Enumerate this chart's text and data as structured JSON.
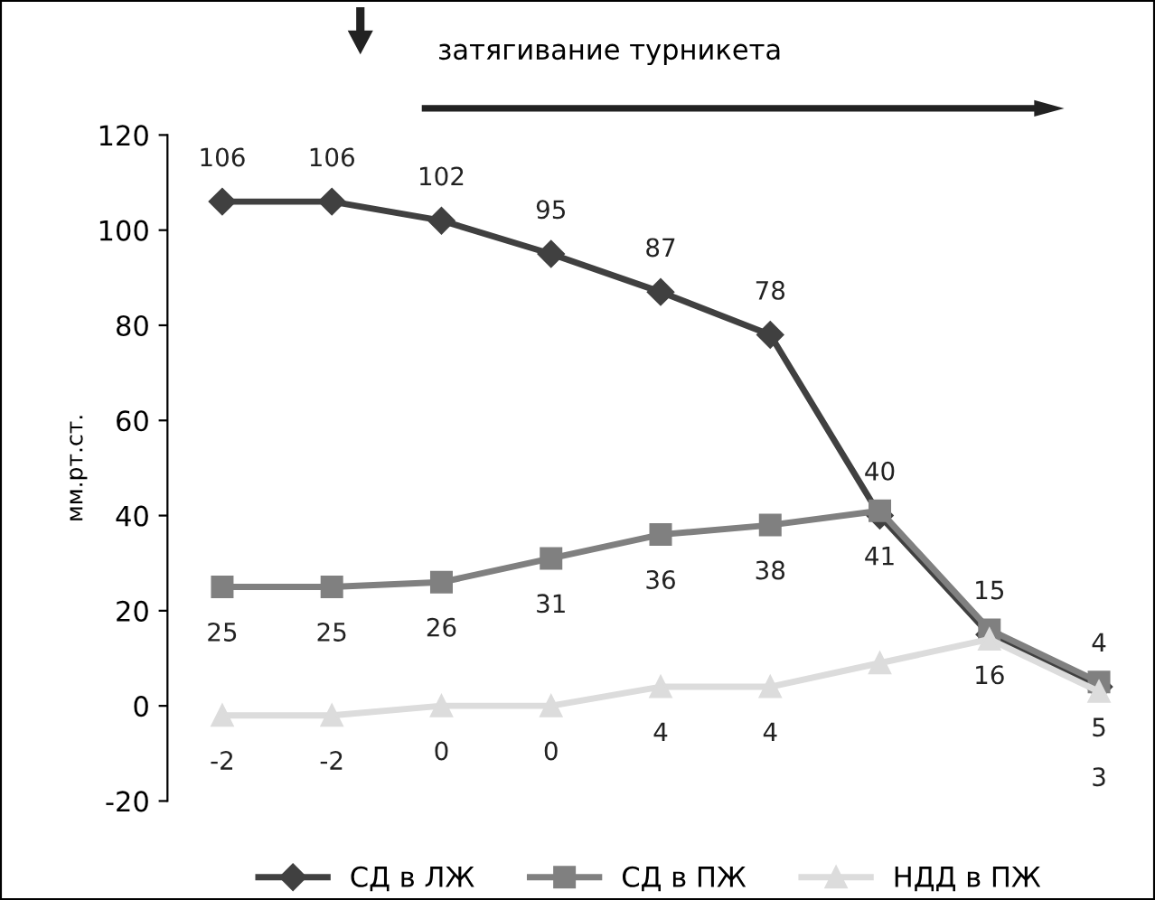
{
  "chart_data": {
    "type": "line",
    "ylabel": "мм.рт.ст.",
    "annotations": [
      "затягивание турникета"
    ],
    "categories": [
      null,
      null,
      null,
      null,
      null,
      null,
      null,
      null,
      null
    ],
    "ylim": [
      -20,
      120
    ],
    "yticks": [
      -20,
      0,
      20,
      40,
      60,
      80,
      100,
      120
    ],
    "grid": false,
    "legend": "bottom",
    "tick_labels": "y",
    "series": [
      {
        "name": "СД в ЛЖ",
        "color": "#404040",
        "marker": "diamond",
        "values": [
          106,
          106,
          102,
          95,
          87,
          78,
          40,
          15,
          4
        ],
        "value_labels": [
          "106",
          "106",
          "102",
          "95",
          "87",
          "78",
          "40",
          "15",
          "4"
        ]
      },
      {
        "name": "СД в ПЖ",
        "color": "#808080",
        "marker": "square",
        "values": [
          25,
          25,
          26,
          31,
          36,
          38,
          41,
          16,
          5
        ],
        "value_labels": [
          "25",
          "25",
          "26",
          "31",
          "36",
          "38",
          "41",
          "16",
          "5"
        ]
      },
      {
        "name": "НДД в ПЖ",
        "color": "#dcdcdc",
        "marker": "triangle",
        "values": [
          -2,
          -2,
          0,
          0,
          4,
          4,
          9,
          14,
          3
        ],
        "value_labels": [
          "-2",
          "-2",
          "0",
          "0",
          "4",
          "4",
          null,
          null,
          "3"
        ]
      }
    ]
  }
}
